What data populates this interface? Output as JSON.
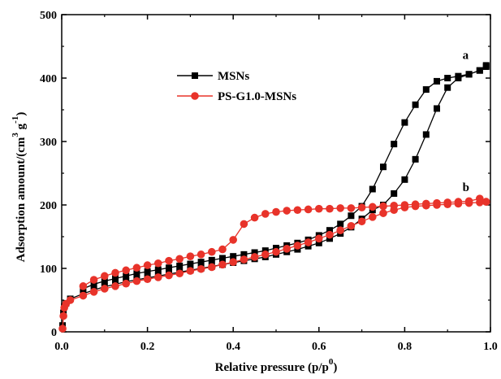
{
  "chart_data": {
    "type": "line",
    "xlabel": "Relative pressure (p/p",
    "xlabel_sup": "0",
    "xlabel_close": ")",
    "ylabel": "Adsorption amount/(cm",
    "ylabel_sup1": "3",
    "ylabel_mid": " g",
    "ylabel_sup2": "-1",
    "ylabel_close": ")",
    "xlim": [
      0.0,
      1.0
    ],
    "ylim": [
      0,
      500
    ],
    "x_ticks": [
      "0.0",
      "0.2",
      "0.4",
      "0.6",
      "0.8",
      "1.0"
    ],
    "y_ticks": [
      "0",
      "100",
      "200",
      "300",
      "400",
      "500"
    ],
    "grid": false,
    "legend_position": "upper-left",
    "series": [
      {
        "name": "MSNs",
        "color": "#000000",
        "marker": "square",
        "adsorption": [
          [
            0.002,
            10
          ],
          [
            0.004,
            30
          ],
          [
            0.006,
            40
          ],
          [
            0.01,
            45
          ],
          [
            0.02,
            52
          ],
          [
            0.05,
            60
          ],
          [
            0.075,
            66
          ],
          [
            0.1,
            71
          ],
          [
            0.125,
            75
          ],
          [
            0.15,
            79
          ],
          [
            0.175,
            82
          ],
          [
            0.2,
            85
          ],
          [
            0.225,
            88
          ],
          [
            0.25,
            91
          ],
          [
            0.275,
            94
          ],
          [
            0.3,
            97
          ],
          [
            0.325,
            100
          ],
          [
            0.35,
            103
          ],
          [
            0.375,
            106
          ],
          [
            0.4,
            109
          ],
          [
            0.425,
            112
          ],
          [
            0.45,
            115
          ],
          [
            0.475,
            118
          ],
          [
            0.5,
            122
          ],
          [
            0.525,
            126
          ],
          [
            0.55,
            130
          ],
          [
            0.575,
            135
          ],
          [
            0.6,
            140
          ],
          [
            0.625,
            147
          ],
          [
            0.65,
            155
          ],
          [
            0.675,
            165
          ],
          [
            0.7,
            178
          ],
          [
            0.725,
            192
          ],
          [
            0.75,
            200
          ],
          [
            0.775,
            218
          ],
          [
            0.8,
            240
          ],
          [
            0.825,
            272
          ],
          [
            0.85,
            311
          ],
          [
            0.875,
            352
          ],
          [
            0.9,
            385
          ],
          [
            0.925,
            400
          ],
          [
            0.95,
            406
          ],
          [
            0.975,
            412
          ],
          [
            0.99,
            418
          ]
        ],
        "desorption": [
          [
            0.99,
            420
          ],
          [
            0.975,
            412
          ],
          [
            0.95,
            406
          ],
          [
            0.925,
            403
          ],
          [
            0.9,
            400
          ],
          [
            0.875,
            395
          ],
          [
            0.85,
            382
          ],
          [
            0.825,
            358
          ],
          [
            0.8,
            330
          ],
          [
            0.775,
            296
          ],
          [
            0.75,
            260
          ],
          [
            0.725,
            225
          ],
          [
            0.7,
            198
          ],
          [
            0.675,
            183
          ],
          [
            0.65,
            170
          ],
          [
            0.625,
            160
          ],
          [
            0.6,
            152
          ],
          [
            0.575,
            145
          ],
          [
            0.55,
            140
          ],
          [
            0.525,
            136
          ],
          [
            0.5,
            132
          ],
          [
            0.475,
            128
          ],
          [
            0.45,
            125
          ],
          [
            0.425,
            122
          ],
          [
            0.4,
            119
          ],
          [
            0.375,
            116
          ],
          [
            0.35,
            113
          ],
          [
            0.325,
            110
          ],
          [
            0.3,
            107
          ],
          [
            0.275,
            104
          ],
          [
            0.25,
            101
          ],
          [
            0.225,
            98
          ],
          [
            0.2,
            95
          ],
          [
            0.175,
            92
          ],
          [
            0.15,
            88
          ],
          [
            0.125,
            84
          ],
          [
            0.1,
            80
          ],
          [
            0.075,
            75
          ],
          [
            0.05,
            68
          ]
        ]
      },
      {
        "name": "PS-G1.0-MSNs",
        "color": "#e8332a",
        "marker": "circle",
        "adsorption": [
          [
            0.002,
            5
          ],
          [
            0.004,
            25
          ],
          [
            0.006,
            38
          ],
          [
            0.01,
            44
          ],
          [
            0.02,
            50
          ],
          [
            0.05,
            57
          ],
          [
            0.075,
            63
          ],
          [
            0.1,
            68
          ],
          [
            0.125,
            72
          ],
          [
            0.15,
            76
          ],
          [
            0.175,
            80
          ],
          [
            0.2,
            83
          ],
          [
            0.225,
            86
          ],
          [
            0.25,
            89
          ],
          [
            0.275,
            92
          ],
          [
            0.3,
            96
          ],
          [
            0.325,
            99
          ],
          [
            0.35,
            102
          ],
          [
            0.375,
            106
          ],
          [
            0.4,
            110
          ],
          [
            0.425,
            114
          ],
          [
            0.45,
            118
          ],
          [
            0.475,
            122
          ],
          [
            0.5,
            126
          ],
          [
            0.525,
            131
          ],
          [
            0.55,
            136
          ],
          [
            0.575,
            141
          ],
          [
            0.6,
            147
          ],
          [
            0.625,
            153
          ],
          [
            0.65,
            160
          ],
          [
            0.675,
            167
          ],
          [
            0.7,
            174
          ],
          [
            0.725,
            181
          ],
          [
            0.75,
            187
          ],
          [
            0.775,
            192
          ],
          [
            0.8,
            196
          ],
          [
            0.825,
            198
          ],
          [
            0.85,
            199
          ],
          [
            0.875,
            200
          ],
          [
            0.9,
            201
          ],
          [
            0.925,
            202
          ],
          [
            0.95,
            203
          ],
          [
            0.975,
            204
          ],
          [
            0.99,
            205
          ]
        ],
        "desorption": [
          [
            0.99,
            205
          ],
          [
            0.975,
            210
          ],
          [
            0.95,
            206
          ],
          [
            0.925,
            205
          ],
          [
            0.9,
            204
          ],
          [
            0.875,
            203
          ],
          [
            0.85,
            202
          ],
          [
            0.825,
            201
          ],
          [
            0.8,
            200
          ],
          [
            0.775,
            199
          ],
          [
            0.75,
            198
          ],
          [
            0.725,
            197
          ],
          [
            0.7,
            196
          ],
          [
            0.675,
            195
          ],
          [
            0.65,
            195
          ],
          [
            0.625,
            194
          ],
          [
            0.6,
            194
          ],
          [
            0.575,
            193
          ],
          [
            0.55,
            192
          ],
          [
            0.525,
            191
          ],
          [
            0.5,
            189
          ],
          [
            0.475,
            186
          ],
          [
            0.45,
            180
          ],
          [
            0.425,
            170
          ],
          [
            0.4,
            145
          ],
          [
            0.375,
            130
          ],
          [
            0.35,
            126
          ],
          [
            0.325,
            122
          ],
          [
            0.3,
            119
          ],
          [
            0.275,
            115
          ],
          [
            0.25,
            112
          ],
          [
            0.225,
            108
          ],
          [
            0.2,
            105
          ],
          [
            0.175,
            101
          ],
          [
            0.15,
            97
          ],
          [
            0.125,
            93
          ],
          [
            0.1,
            88
          ],
          [
            0.075,
            82
          ],
          [
            0.05,
            72
          ]
        ]
      }
    ],
    "annotations": [
      {
        "text": "a",
        "x": 0.935,
        "y": 430
      },
      {
        "text": "b",
        "x": 0.935,
        "y": 222
      }
    ]
  }
}
